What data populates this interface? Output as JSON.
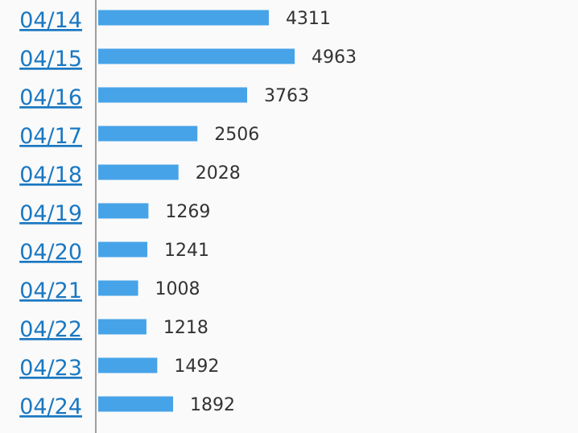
{
  "colors": {
    "bar": "#46a3e8",
    "link": "#1a78c2",
    "value_text": "#333333",
    "axis": "#9e9e9e",
    "background": "#fafafa"
  },
  "chart_data": {
    "type": "bar",
    "orientation": "horizontal",
    "categories": [
      "04/14",
      "04/15",
      "04/16",
      "04/17",
      "04/18",
      "04/19",
      "04/20",
      "04/21",
      "04/22",
      "04/23",
      "04/24"
    ],
    "values": [
      4311,
      4963,
      3763,
      2506,
      2028,
      1269,
      1241,
      1008,
      1218,
      1492,
      1892
    ],
    "value_labels": [
      "4311",
      "4963",
      "3763",
      "2506",
      "2028",
      "1269",
      "1241",
      "1008",
      "1218",
      "1492",
      "1892"
    ],
    "xlim": [
      0,
      4963
    ],
    "grid": false,
    "legend": "none"
  }
}
